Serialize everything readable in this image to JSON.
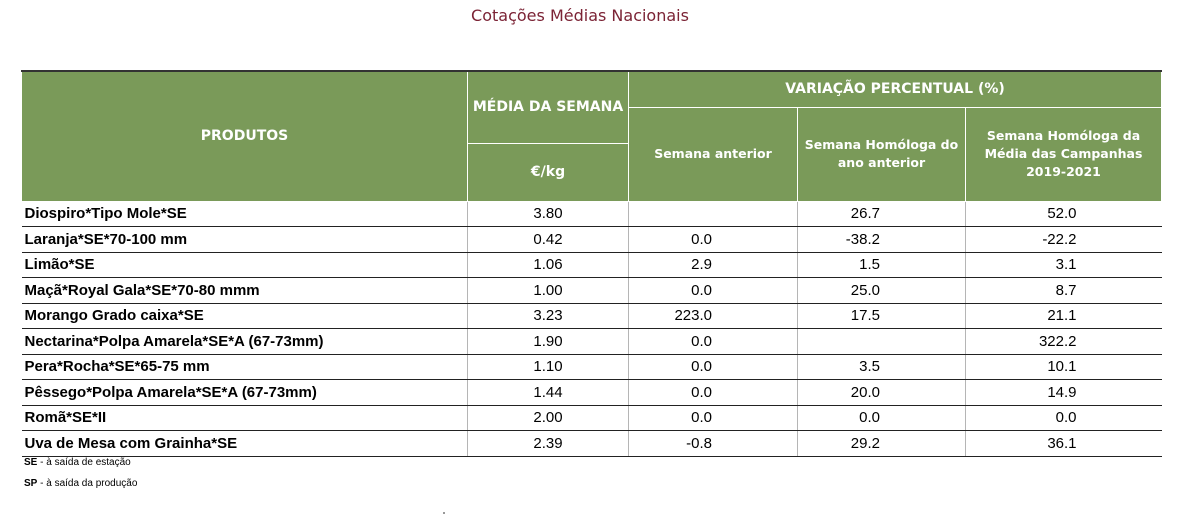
{
  "title": "Cotações Médias Nacionais",
  "headers": {
    "produtos": "PRODUTOS",
    "media": "MÉDIA DA SEMANA",
    "unit": "€/kg",
    "variacao": "VARIAÇÃO PERCENTUAL (%)",
    "semana_anterior": "Semana anterior",
    "homologa": "Semana Homóloga do ano anterior",
    "campanhas": "Semana Homóloga da Média das Campanhas 2019-2021"
  },
  "rows": [
    {
      "produto": "Diospiro*Tipo Mole*SE",
      "media": "3.80",
      "anterior": "",
      "homologa": "26.7",
      "campanhas": "52.0"
    },
    {
      "produto": "Laranja*SE*70-100 mm",
      "media": "0.42",
      "anterior": "0.0",
      "homologa": "-38.2",
      "campanhas": "-22.2"
    },
    {
      "produto": "Limão*SE",
      "media": "1.06",
      "anterior": "2.9",
      "homologa": "1.5",
      "campanhas": "3.1"
    },
    {
      "produto": "Maçã*Royal Gala*SE*70-80 mmm",
      "media": "1.00",
      "anterior": "0.0",
      "homologa": "25.0",
      "campanhas": "8.7"
    },
    {
      "produto": "Morango Grado caixa*SE",
      "media": "3.23",
      "anterior": "223.0",
      "homologa": "17.5",
      "campanhas": "21.1"
    },
    {
      "produto": "Nectarina*Polpa Amarela*SE*A (67-73mm)",
      "media": "1.90",
      "anterior": "0.0",
      "homologa": "",
      "campanhas": "322.2"
    },
    {
      "produto": "Pera*Rocha*SE*65-75 mm",
      "media": "1.10",
      "anterior": "0.0",
      "homologa": "3.5",
      "campanhas": "10.1"
    },
    {
      "produto": "Pêssego*Polpa Amarela*SE*A (67-73mm)",
      "media": "1.44",
      "anterior": "0.0",
      "homologa": "20.0",
      "campanhas": "14.9"
    },
    {
      "produto": "Romã*SE*II",
      "media": "2.00",
      "anterior": "0.0",
      "homologa": "0.0",
      "campanhas": "0.0"
    },
    {
      "produto": "Uva de Mesa com Grainha*SE",
      "media": "2.39",
      "anterior": "-0.8",
      "homologa": "29.2",
      "campanhas": "36.1"
    }
  ],
  "notes": [
    {
      "abbr": "SE",
      "text": " - à saída de estação"
    },
    {
      "abbr": "SP",
      "text": " - à saída da produção"
    }
  ]
}
